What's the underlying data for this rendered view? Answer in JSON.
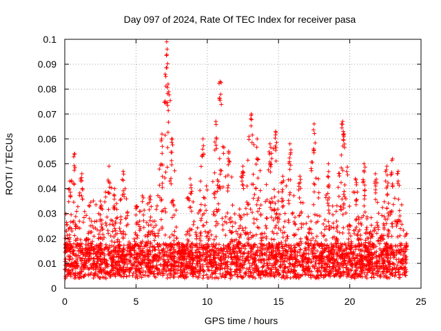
{
  "chart_data": {
    "type": "scatter",
    "title": "Day 097 of 2024, Rate Of TEC Index for receiver pasa",
    "xlabel": "GPS time / hours",
    "ylabel": "ROTI / TECUs",
    "xlim": [
      0,
      25
    ],
    "ylim": [
      0,
      0.1
    ],
    "x_ticks": [
      "0",
      "5",
      "10",
      "15",
      "20",
      "25"
    ],
    "y_ticks": [
      "0",
      "0.01",
      "0.02",
      "0.03",
      "0.04",
      "0.05",
      "0.06",
      "0.07",
      "0.08",
      "0.09",
      "0.1"
    ],
    "grid": true,
    "marker": "+",
    "series_color": "#ff0000",
    "peaks": [
      {
        "x": 0.1,
        "y": 0.023
      },
      {
        "x": 0.35,
        "y": 0.043
      },
      {
        "x": 0.7,
        "y": 0.054
      },
      {
        "x": 1.2,
        "y": 0.046
      },
      {
        "x": 2.5,
        "y": 0.035
      },
      {
        "x": 3.1,
        "y": 0.049
      },
      {
        "x": 3.5,
        "y": 0.04
      },
      {
        "x": 4.1,
        "y": 0.047
      },
      {
        "x": 5.0,
        "y": 0.033
      },
      {
        "x": 6.0,
        "y": 0.037
      },
      {
        "x": 6.8,
        "y": 0.06
      },
      {
        "x": 7.15,
        "y": 0.099
      },
      {
        "x": 7.05,
        "y": 0.086
      },
      {
        "x": 7.25,
        "y": 0.082
      },
      {
        "x": 7.5,
        "y": 0.06
      },
      {
        "x": 8.8,
        "y": 0.044
      },
      {
        "x": 9.7,
        "y": 0.06
      },
      {
        "x": 10.6,
        "y": 0.067
      },
      {
        "x": 10.9,
        "y": 0.083
      },
      {
        "x": 11.5,
        "y": 0.055
      },
      {
        "x": 12.5,
        "y": 0.049
      },
      {
        "x": 13.1,
        "y": 0.07
      },
      {
        "x": 13.5,
        "y": 0.06
      },
      {
        "x": 14.4,
        "y": 0.058
      },
      {
        "x": 14.8,
        "y": 0.063
      },
      {
        "x": 15.3,
        "y": 0.045
      },
      {
        "x": 15.8,
        "y": 0.058
      },
      {
        "x": 16.5,
        "y": 0.045
      },
      {
        "x": 17.5,
        "y": 0.066
      },
      {
        "x": 18.5,
        "y": 0.05
      },
      {
        "x": 19.5,
        "y": 0.067
      },
      {
        "x": 19.6,
        "y": 0.062
      },
      {
        "x": 20.4,
        "y": 0.044
      },
      {
        "x": 21.0,
        "y": 0.05
      },
      {
        "x": 21.8,
        "y": 0.046
      },
      {
        "x": 22.6,
        "y": 0.049
      },
      {
        "x": 23.0,
        "y": 0.052
      },
      {
        "x": 23.4,
        "y": 0.047
      },
      {
        "x": 24.0,
        "y": 0.022
      }
    ]
  }
}
